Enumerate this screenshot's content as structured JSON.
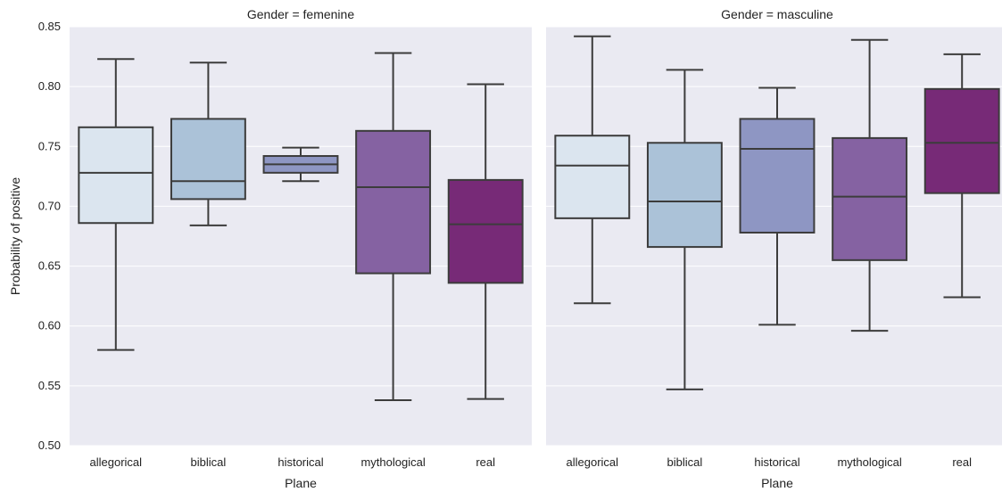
{
  "chart_data": {
    "type": "boxplot",
    "y_label": "Probability of positive",
    "x_label": "Plane",
    "ylim": [
      0.5,
      0.85
    ],
    "y_ticks": [
      "0.50",
      "0.55",
      "0.60",
      "0.65",
      "0.70",
      "0.75",
      "0.80",
      "0.85"
    ],
    "categories": [
      "allegorical",
      "biblical",
      "historical",
      "mythological",
      "real"
    ],
    "colors": [
      "#dbe5ef",
      "#abc2d8",
      "#8e96c3",
      "#8562a2",
      "#772a77"
    ],
    "median_color": "#3c3c3c",
    "grid": true,
    "background": "#eaeaf2",
    "panels": [
      {
        "title": "Gender = femenine",
        "boxes": [
          {
            "category": "allegorical",
            "whisker_low": 0.58,
            "q1": 0.686,
            "median": 0.728,
            "q3": 0.766,
            "whisker_high": 0.823
          },
          {
            "category": "biblical",
            "whisker_low": 0.684,
            "q1": 0.706,
            "median": 0.721,
            "q3": 0.773,
            "whisker_high": 0.82
          },
          {
            "category": "historical",
            "whisker_low": 0.721,
            "q1": 0.728,
            "median": 0.735,
            "q3": 0.742,
            "whisker_high": 0.749
          },
          {
            "category": "mythological",
            "whisker_low": 0.538,
            "q1": 0.644,
            "median": 0.716,
            "q3": 0.763,
            "whisker_high": 0.828
          },
          {
            "category": "real",
            "whisker_low": 0.539,
            "q1": 0.636,
            "median": 0.685,
            "q3": 0.722,
            "whisker_high": 0.802
          }
        ]
      },
      {
        "title": "Gender = masculine",
        "boxes": [
          {
            "category": "allegorical",
            "whisker_low": 0.619,
            "q1": 0.69,
            "median": 0.734,
            "q3": 0.759,
            "whisker_high": 0.842
          },
          {
            "category": "biblical",
            "whisker_low": 0.547,
            "q1": 0.666,
            "median": 0.704,
            "q3": 0.753,
            "whisker_high": 0.814
          },
          {
            "category": "historical",
            "whisker_low": 0.601,
            "q1": 0.678,
            "median": 0.748,
            "q3": 0.773,
            "whisker_high": 0.799
          },
          {
            "category": "mythological",
            "whisker_low": 0.596,
            "q1": 0.655,
            "median": 0.708,
            "q3": 0.757,
            "whisker_high": 0.839
          },
          {
            "category": "real",
            "whisker_low": 0.624,
            "q1": 0.711,
            "median": 0.753,
            "q3": 0.798,
            "whisker_high": 0.827
          }
        ]
      }
    ]
  }
}
